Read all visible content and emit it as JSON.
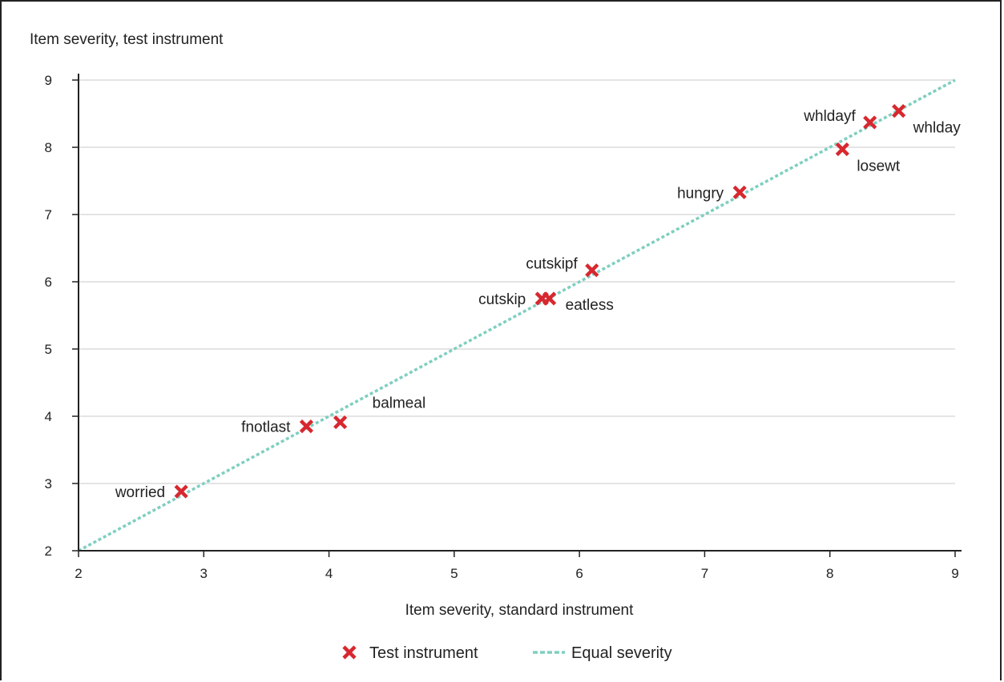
{
  "chart_data": {
    "type": "scatter",
    "ylabel": "Item severity, test instrument",
    "xlabel": "Item severity, standard instrument",
    "xlim": [
      2,
      9
    ],
    "ylim": [
      2,
      9
    ],
    "xticks": [
      "2",
      "3",
      "4",
      "5",
      "6",
      "7",
      "8",
      "9"
    ],
    "yticks": [
      "2",
      "3",
      "4",
      "5",
      "6",
      "7",
      "8",
      "9"
    ],
    "grid": "horizontal",
    "legend_position": "bottom",
    "series": [
      {
        "name": "Test instrument",
        "marker": "x",
        "color": "#d7282f",
        "points": [
          {
            "label": "worried",
            "x": 2.82,
            "y": 2.88,
            "label_side": "left"
          },
          {
            "label": "fnotlast",
            "x": 3.82,
            "y": 3.85,
            "label_side": "left"
          },
          {
            "label": "balmeal",
            "x": 4.09,
            "y": 3.91,
            "label_side": "upper-right"
          },
          {
            "label": "cutskip",
            "x": 5.7,
            "y": 5.75,
            "label_side": "left"
          },
          {
            "label": "eatless",
            "x": 5.76,
            "y": 5.75,
            "label_side": "right"
          },
          {
            "label": "cutskipf",
            "x": 6.1,
            "y": 6.17,
            "label_side": "upper-left"
          },
          {
            "label": "hungry",
            "x": 7.28,
            "y": 7.33,
            "label_side": "left"
          },
          {
            "label": "losewt",
            "x": 8.1,
            "y": 7.97,
            "label_side": "lower-right"
          },
          {
            "label": "whldayf",
            "x": 8.32,
            "y": 8.37,
            "label_side": "upper-left"
          },
          {
            "label": "whlday",
            "x": 8.55,
            "y": 8.54,
            "label_side": "lower-right"
          }
        ]
      },
      {
        "name": "Equal severity",
        "style": "dashed",
        "color": "#7fcfc0",
        "x": [
          2,
          9
        ],
        "y": [
          2,
          9
        ]
      }
    ]
  }
}
